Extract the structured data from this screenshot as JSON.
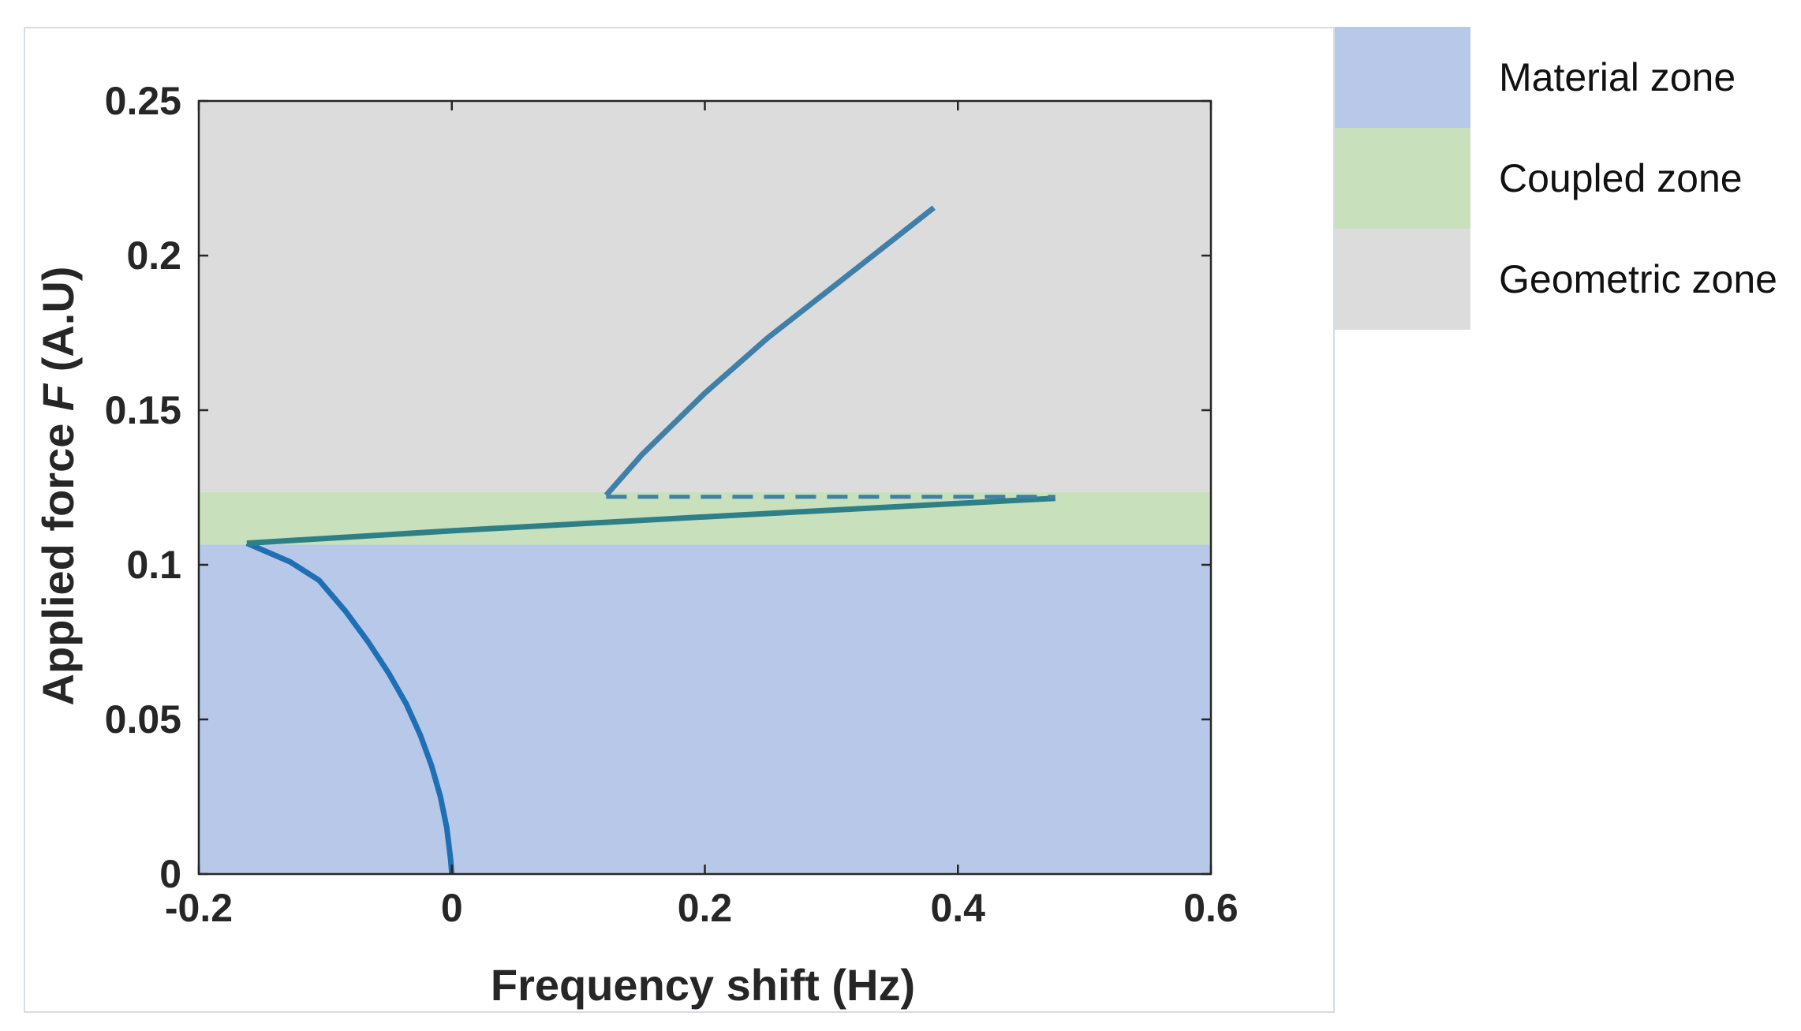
{
  "chart_data": {
    "type": "line",
    "xlabel": "Frequency shift (Hz)",
    "ylabel_prefix": "Applied force ",
    "ylabel_var": "F",
    "ylabel_suffix": " (A.U)",
    "xlim": [
      -0.2,
      0.6
    ],
    "ylim": [
      0,
      0.25
    ],
    "x_ticks": [
      -0.2,
      0,
      0.2,
      0.4,
      0.6
    ],
    "x_tick_labels": [
      "-0.2",
      "0",
      "0.2",
      "0.4",
      "0.6"
    ],
    "y_ticks": [
      0,
      0.05,
      0.1,
      0.15,
      0.2,
      0.25
    ],
    "y_tick_labels": [
      "0",
      "0.05",
      "0.1",
      "0.15",
      "0.2",
      "0.25"
    ],
    "grid": false,
    "legend_position": "outside-right",
    "zones": [
      {
        "label": "Material zone",
        "y_from": 0,
        "y_to": 0.1065,
        "color": "#b7c8e9"
      },
      {
        "label": "Coupled zone",
        "y_from": 0.1065,
        "y_to": 0.1235,
        "color": "#c8e0bb"
      },
      {
        "label": "Geometric zone",
        "y_from": 0.1235,
        "y_to": 0.25,
        "color": "#dcdcdc"
      }
    ],
    "series": [
      {
        "color": "#1f6fb4",
        "style": "solid",
        "points": [
          [
            0,
            0
          ],
          [
            -0.001,
            0.005
          ],
          [
            -0.004,
            0.015
          ],
          [
            -0.009,
            0.025
          ],
          [
            -0.016,
            0.035
          ],
          [
            -0.025,
            0.045
          ],
          [
            -0.036,
            0.055
          ],
          [
            -0.05,
            0.065
          ],
          [
            -0.066,
            0.075
          ],
          [
            -0.084,
            0.085
          ],
          [
            -0.105,
            0.095
          ],
          [
            -0.128,
            0.101
          ],
          [
            -0.162,
            0.107
          ]
        ]
      },
      {
        "color": "#2e7f86",
        "style": "solid",
        "points": [
          [
            -0.162,
            0.107
          ],
          [
            0.0,
            0.111
          ],
          [
            0.2,
            0.1155
          ],
          [
            0.477,
            0.1215
          ]
        ]
      },
      {
        "color": "#3f7fa8",
        "style": "solid",
        "points": [
          [
            0.122,
            0.1225
          ],
          [
            0.15,
            0.1355
          ],
          [
            0.2,
            0.1555
          ],
          [
            0.25,
            0.1735
          ],
          [
            0.3,
            0.1895
          ],
          [
            0.35,
            0.2055
          ],
          [
            0.381,
            0.2155
          ]
        ]
      },
      {
        "color": "#3f7fa8",
        "style": "dashed",
        "points": [
          [
            0.122,
            0.122
          ],
          [
            0.477,
            0.122
          ]
        ]
      }
    ]
  }
}
